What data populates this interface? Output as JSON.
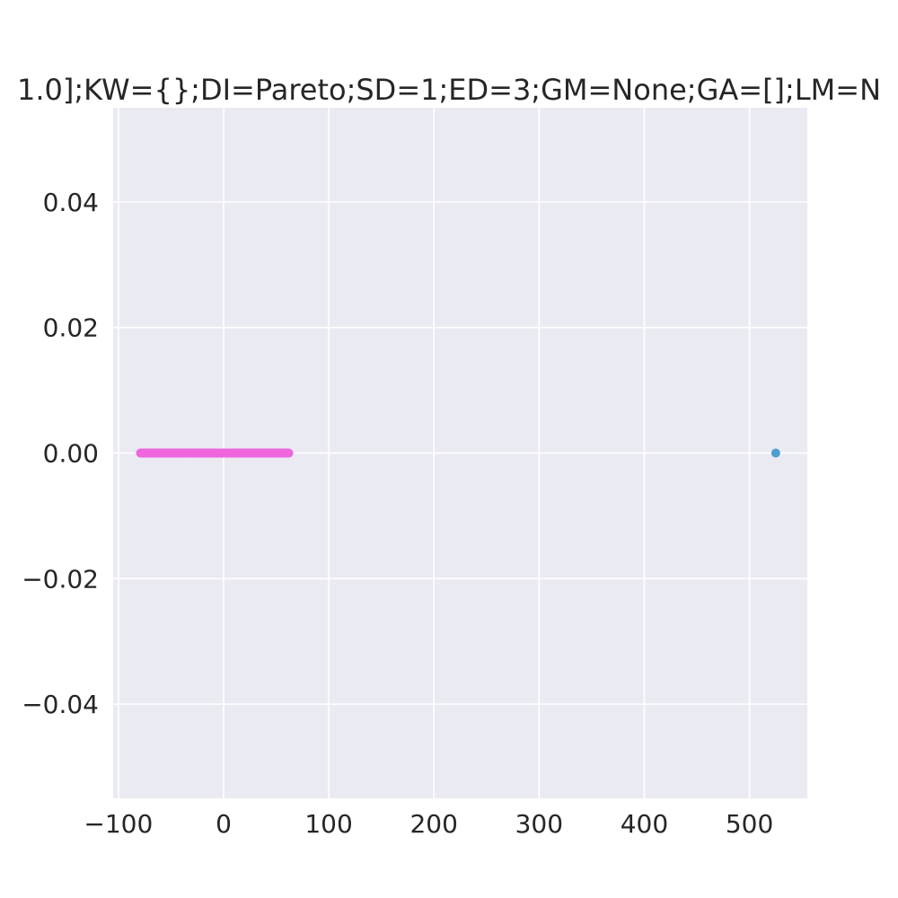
{
  "chart_data": {
    "type": "scatter",
    "title": "1.0];KW={};DI=Pareto;SD=1;ED=3;GM=None;GA=[];LM=N",
    "xlabel": "",
    "ylabel": "",
    "xlim": [
      -105,
      555
    ],
    "ylim": [
      -0.055,
      0.055
    ],
    "grid": true,
    "x_ticks": [
      -100,
      0,
      100,
      200,
      300,
      400,
      500
    ],
    "x_tick_labels": [
      "−100",
      "0",
      "100",
      "200",
      "300",
      "400",
      "500"
    ],
    "y_ticks": [
      0.04,
      0.02,
      0.0,
      -0.02,
      -0.04
    ],
    "y_tick_labels": [
      "0.04",
      "0.02",
      "0.00",
      "−0.02",
      "−0.04"
    ],
    "series": [
      {
        "color": "#ee66dd",
        "x_range": [
          -79,
          62
        ],
        "y": 0.0
      },
      {
        "color": "#4c9fcf",
        "x": [
          525
        ],
        "y": [
          0.0
        ]
      }
    ],
    "colors": {
      "plot_background": "#eaeaf2",
      "grid": "#ffffff",
      "text": "#262626"
    }
  }
}
